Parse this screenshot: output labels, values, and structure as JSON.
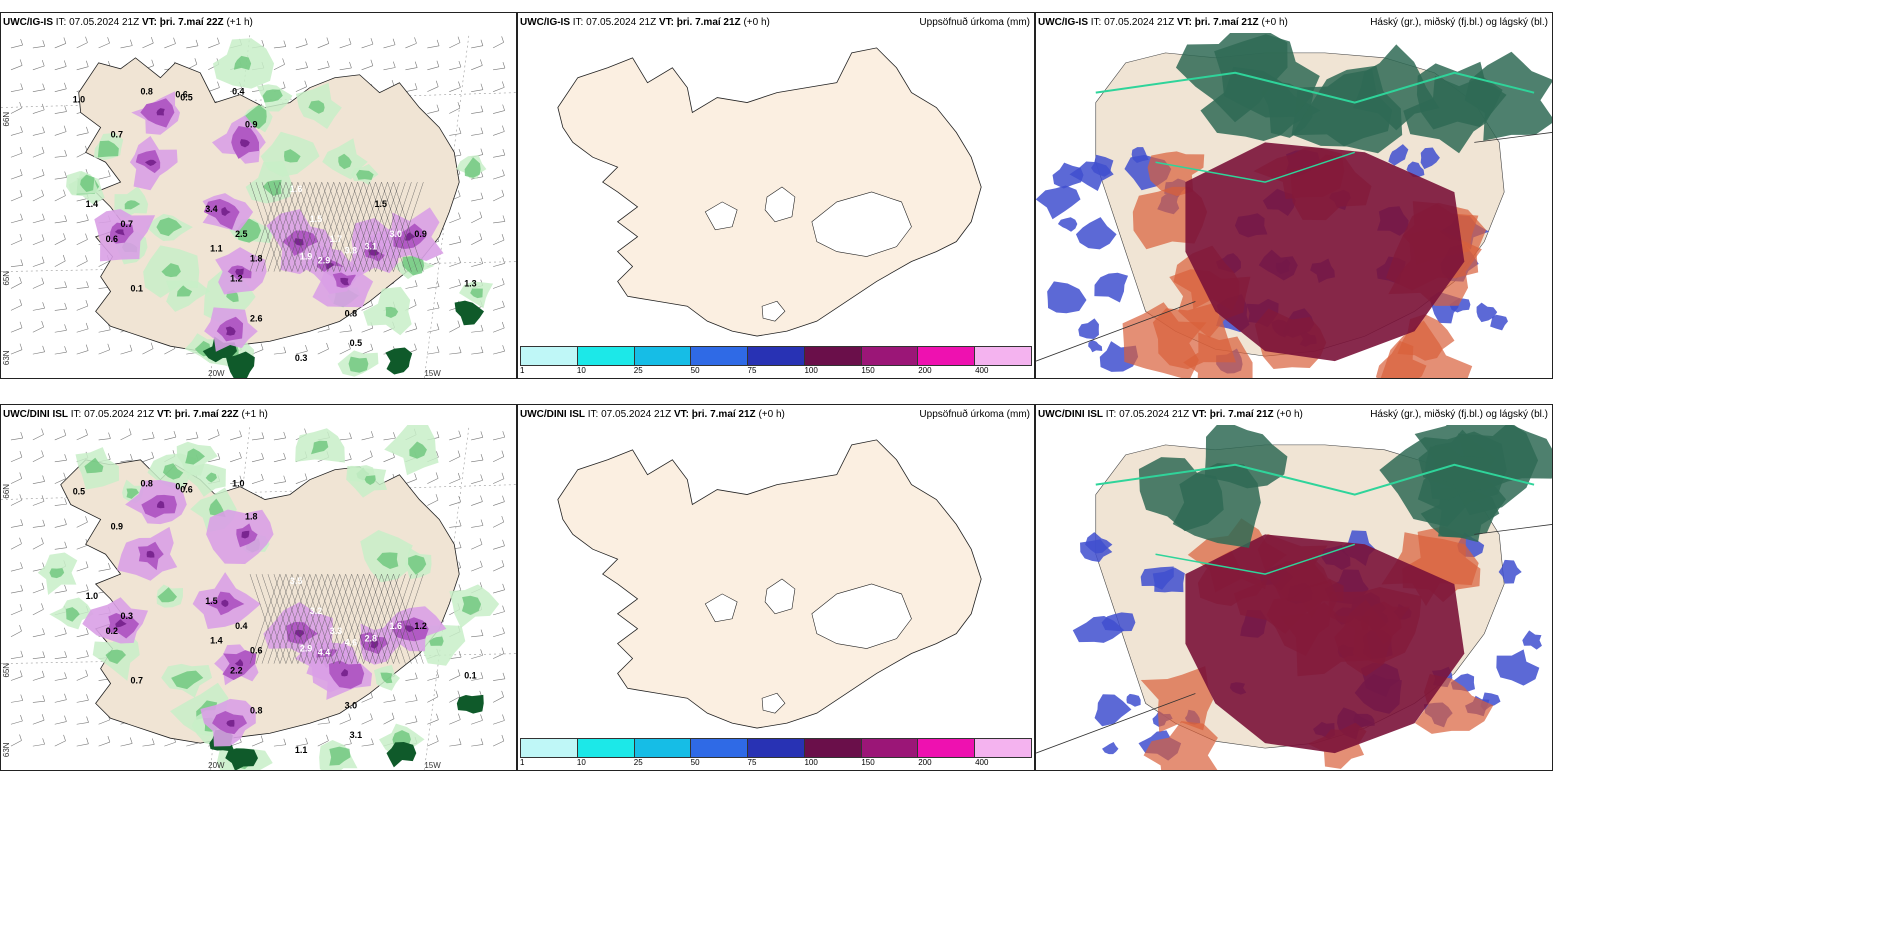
{
  "colors": {
    "land": "#f0e4d4",
    "land_beige": "#fbefe1",
    "sea": "#ffffff",
    "green_light": "#c8eec8",
    "green_mid": "#6bc57a",
    "green_dark": "#0f5a2a",
    "purple_light": "#d9a0e6",
    "purple_mid": "#b15ac4",
    "purple_dark": "#7a2590",
    "cloud_high": "#2f6a55",
    "cloud_mid": "#7a1238",
    "cloud_low": "#3f4fcf",
    "cloud_orange": "#d9603a",
    "cloud_teal": "#2fd49a"
  },
  "rows": [
    {
      "panels": [
        {
          "model": "UWC/IG-IS",
          "it_label": "IT:",
          "it_value": "07.05.2024 21Z",
          "vt_label": "VT:",
          "vt_value": "þri. 7.maí 22Z",
          "lead": "(+1 h)",
          "right_title": ""
        },
        {
          "model": "UWC/IG-IS",
          "it_label": "IT:",
          "it_value": "07.05.2024 21Z",
          "vt_label": "VT:",
          "vt_value": "þri. 7.maí 21Z",
          "lead": "(+0 h)",
          "right_title": "Uppsöfnuð úrkoma (mm)"
        },
        {
          "model": "UWC/IG-IS",
          "it_label": "IT:",
          "it_value": "07.05.2024 21Z",
          "vt_label": "VT:",
          "vt_value": "þri. 7.maí 21Z",
          "lead": "(+0 h)",
          "right_title": "Háský (gr.), miðský (fj.bl.) og lágský (bl.)"
        }
      ],
      "values": [
        "0.6",
        "0.4",
        "1.0",
        "0.8",
        "0.5",
        "0.7",
        "0.9",
        "1.6",
        "1.5",
        "1.7",
        "1.9",
        "2.9",
        "3.8",
        "3.1",
        "3.0",
        "0.8",
        "0.5",
        "0.9",
        "1.3",
        "0.3",
        "0.6",
        "0.7",
        "1.1",
        "1.2",
        "3.4",
        "2.5",
        "1.8",
        "2.6",
        "1.4",
        "0.1",
        "1.5"
      ]
    },
    {
      "panels": [
        {
          "model": "UWC/DINI ISL",
          "it_label": "IT:",
          "it_value": "07.05.2024 21Z",
          "vt_label": "VT:",
          "vt_value": "þri. 7.maí 22Z",
          "lead": "(+1 h)",
          "right_title": ""
        },
        {
          "model": "UWC/DINI ISL",
          "it_label": "IT:",
          "it_value": "07.05.2024 21Z",
          "vt_label": "VT:",
          "vt_value": "þri. 7.maí 21Z",
          "lead": "(+0 h)",
          "right_title": "Uppsöfnuð úrkoma (mm)"
        },
        {
          "model": "UWC/DINI ISL",
          "it_label": "IT:",
          "it_value": "07.05.2024 21Z",
          "vt_label": "VT:",
          "vt_value": "þri. 7.maí 21Z",
          "lead": "(+0 h)",
          "right_title": "Háský (gr.), miðský (fj.bl.) og lágský (bl.)"
        }
      ],
      "values": [
        "0.7",
        "1.0",
        "0.5",
        "0.8",
        "0.6",
        "0.9",
        "1.8",
        "3.5",
        "3.2",
        "3.3",
        "2.9",
        "4.4",
        "4.6",
        "2.8",
        "1.6",
        "3.0",
        "3.1",
        "1.2",
        "0.1",
        "1.1",
        "0.2",
        "0.3",
        "1.4",
        "2.2",
        "1.5",
        "0.4",
        "0.6",
        "0.8",
        "1.0",
        "0.7"
      ]
    }
  ],
  "axis_labels": {
    "lon_20w": "20W",
    "lon_15w": "15W",
    "lat_66n": "66N",
    "lat_65n": "65N",
    "lat_63n": "63N"
  },
  "colorbar": {
    "colors": [
      "#bff7f7",
      "#1ce8e8",
      "#16bde6",
      "#2f6ae6",
      "#2832b4",
      "#6a0f4a",
      "#9b1677",
      "#ee11b0",
      "#f4b3ef"
    ],
    "ticks": [
      "1",
      "10",
      "25",
      "50",
      "75",
      "100",
      "150",
      "200",
      "400"
    ]
  }
}
